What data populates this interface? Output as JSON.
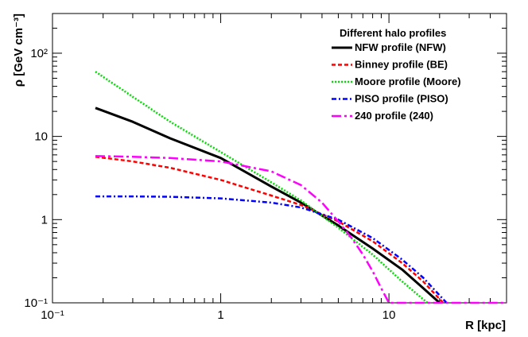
{
  "chart_data": {
    "type": "line",
    "title": "",
    "xlabel": "R [kpc]",
    "ylabel": "ρ [GeV cm⁻³]",
    "xscale": "log",
    "yscale": "log",
    "xlim": [
      0.1,
      50
    ],
    "ylim": [
      0.1,
      300
    ],
    "x_ticks": [
      {
        "value": 0.1,
        "label": "10⁻¹"
      },
      {
        "value": 1,
        "label": "1"
      },
      {
        "value": 10,
        "label": "10"
      }
    ],
    "y_ticks": [
      {
        "value": 0.1,
        "label": "10⁻¹"
      },
      {
        "value": 1,
        "label": "1"
      },
      {
        "value": 10,
        "label": "10"
      },
      {
        "value": 100,
        "label": "10²"
      }
    ],
    "legend": {
      "title": "Different halo profiles",
      "position": "top-right"
    },
    "series": [
      {
        "name": "NFW profile (NFW)",
        "color": "#000000",
        "style": "solid",
        "x": [
          0.18,
          0.3,
          0.5,
          1,
          2,
          3,
          5,
          8,
          12,
          16,
          20
        ],
        "y": [
          22,
          15,
          9.5,
          5.5,
          2.5,
          1.6,
          0.85,
          0.45,
          0.25,
          0.15,
          0.1
        ]
      },
      {
        "name": "Binney profile (BE)",
        "color": "#ff0000",
        "style": "dashed",
        "x": [
          0.18,
          0.3,
          0.5,
          1,
          2,
          3,
          5,
          8,
          12,
          16,
          21
        ],
        "y": [
          5.7,
          5.0,
          4.2,
          3.0,
          1.95,
          1.5,
          0.95,
          0.55,
          0.3,
          0.18,
          0.1
        ]
      },
      {
        "name": "Moore profile (Moore)",
        "color": "#00dd00",
        "style": "dotted",
        "x": [
          0.18,
          0.3,
          0.5,
          1,
          2,
          3,
          5,
          8,
          12,
          16,
          17
        ],
        "y": [
          60,
          30,
          15,
          6.5,
          2.8,
          1.7,
          0.8,
          0.38,
          0.18,
          0.11,
          0.1
        ]
      },
      {
        "name": "PISO profile (PISO)",
        "color": "#0000ff",
        "style": "dashdot",
        "x": [
          0.18,
          0.3,
          0.5,
          1,
          2,
          3,
          5,
          8,
          12,
          16,
          22
        ],
        "y": [
          1.9,
          1.9,
          1.88,
          1.8,
          1.6,
          1.4,
          1.0,
          0.6,
          0.33,
          0.2,
          0.1
        ]
      },
      {
        "name": "240 profile (240)",
        "color": "#ff00ff",
        "style": "longdashdot",
        "x": [
          0.18,
          0.3,
          0.5,
          1,
          2,
          3,
          4,
          5,
          6,
          7,
          8,
          9,
          10,
          50
        ],
        "y": [
          5.8,
          5.7,
          5.5,
          5.0,
          3.8,
          2.6,
          1.6,
          0.95,
          0.6,
          0.38,
          0.24,
          0.15,
          0.1,
          0.1
        ]
      }
    ]
  }
}
